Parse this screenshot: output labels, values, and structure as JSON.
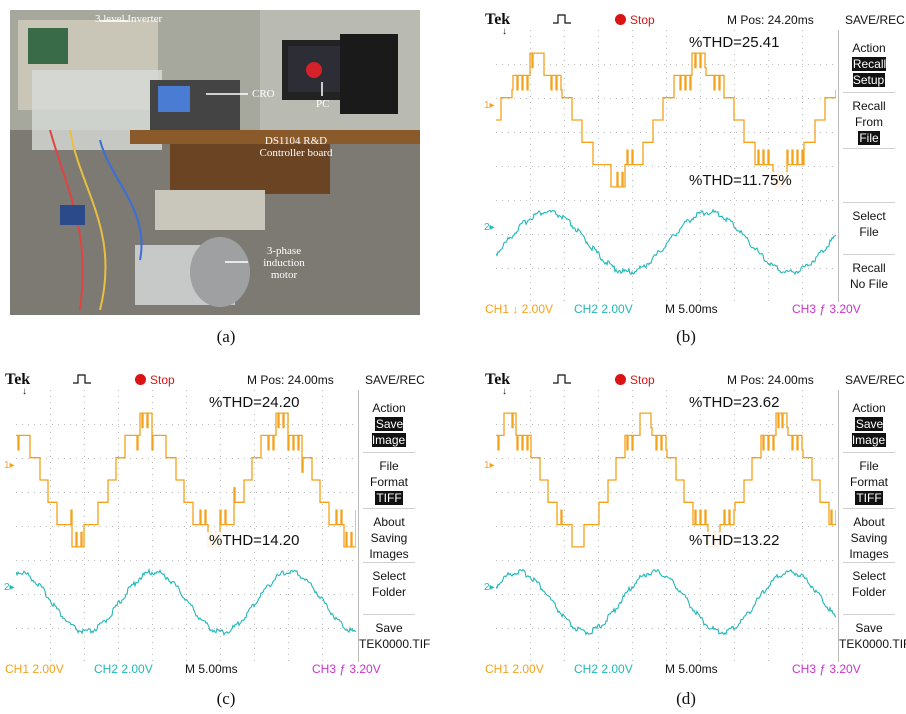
{
  "captions": [
    "(a)",
    "(b)",
    "(c)",
    "(d)"
  ],
  "photo": {
    "labels": {
      "inverter": "3 level Inverter",
      "cro": "CRO",
      "pc": "PC",
      "controller": "DS1104 R&D Controller board",
      "motor": "3-phase induction motor"
    }
  },
  "scopes": [
    {
      "brand": "Tek",
      "status": "Stop",
      "mpos": "M Pos: 24.20ms",
      "mode": "SAVE/REC",
      "thd1": "%THD=25.41",
      "thd2": "%THD=11.75%",
      "menu": [
        {
          "l1": "Action",
          "l2": "Recall Setup",
          "inv": "l2"
        },
        {
          "l1": "Recall From",
          "l2": "File",
          "inv": "l2"
        },
        {
          "l1": "",
          "l2": ""
        },
        {
          "l1": "Select",
          "l2": "File"
        },
        {
          "l1": "Recall",
          "l2": "No File"
        }
      ],
      "ch1": "CH1 ↓ 2.00V",
      "ch2": "CH2  2.00V",
      "time": "M 5.00ms",
      "ch3": "CH3 ƒ 3.20V",
      "periods": 2.1,
      "phase": 0.0
    },
    {
      "brand": "Tek",
      "status": "Stop",
      "mpos": "M Pos: 24.00ms",
      "mode": "SAVE/REC",
      "thd1": "%THD=24.20",
      "thd2": "%THD=14.20",
      "menu": [
        {
          "l1": "Action",
          "l2": "Save Image",
          "inv": "l2"
        },
        {
          "l1": "File",
          "l2": "Format",
          "l3": "TIFF",
          "inv": "l3"
        },
        {
          "l1": "About",
          "l2": "Saving",
          "l3": "Images"
        },
        {
          "l1": "Select",
          "l2": "Folder"
        },
        {
          "l1": "Save",
          "l2": "TEK0000.TIF"
        }
      ],
      "ch1": "CH1  2.00V",
      "ch2": "CH2  2.00V",
      "time": "M 5.00ms",
      "ch3": "CH3 ƒ 3.20V",
      "periods": 2.5,
      "phase": 0.3
    },
    {
      "brand": "Tek",
      "status": "Stop",
      "mpos": "M Pos: 24.00ms",
      "mode": "SAVE/REC",
      "thd1": "%THD=23.62",
      "thd2": "%THD=13.22",
      "menu": [
        {
          "l1": "Action",
          "l2": "Save Image",
          "inv": "l2"
        },
        {
          "l1": "File",
          "l2": "Format",
          "l3": "TIFF",
          "inv": "l3"
        },
        {
          "l1": "About",
          "l2": "Saving",
          "l3": "Images"
        },
        {
          "l1": "Select",
          "l2": "Folder"
        },
        {
          "l1": "Save",
          "l2": "TEK0000.TIF"
        }
      ],
      "ch1": "CH1  2.00V",
      "ch2": "CH2  2.00V",
      "time": "M 5.00ms",
      "ch3": "CH3 ƒ 3.20V",
      "periods": 2.5,
      "phase": 0.15
    }
  ],
  "colors": {
    "ch1": "#f5a21b",
    "ch2": "#22b8b8",
    "ch3": "#cc33cc",
    "grid": "#bdbdbd"
  }
}
